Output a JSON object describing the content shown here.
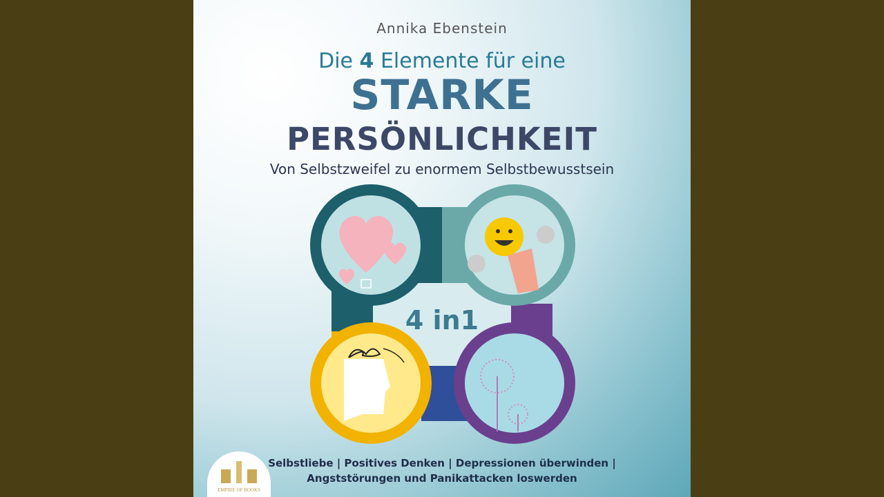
{
  "cover": {
    "author": "Annika Ebenstein",
    "title_line1_pre": "Die ",
    "title_line1_num": "4",
    "title_line1_post": " Elemente für eine",
    "title_line2": "STARKE",
    "title_line3": "PERSÖNLICHKEIT",
    "subtitle": "Von Selbstzweifel zu enormem Selbstbewusstsein",
    "badge": "4 in1",
    "tags_line1": "Selbstliebe | Positives Denken | Depressionen überwinden |",
    "tags_line2": "Angststörungen und Panikattacken loswerden",
    "publisher_logo": "EMPIRE OF BOOKS"
  },
  "colors": {
    "frame": "#4a3f14",
    "ring_teal_dark": "#1d5f6b",
    "ring_teal_light": "#6aa9a8",
    "ring_yellow": "#f2b200",
    "ring_purple": "#6a3f8e"
  },
  "icons": [
    "heart-balloon-icon",
    "smiley-hand-icon",
    "tangled-head-icon",
    "dandelion-icon"
  ]
}
